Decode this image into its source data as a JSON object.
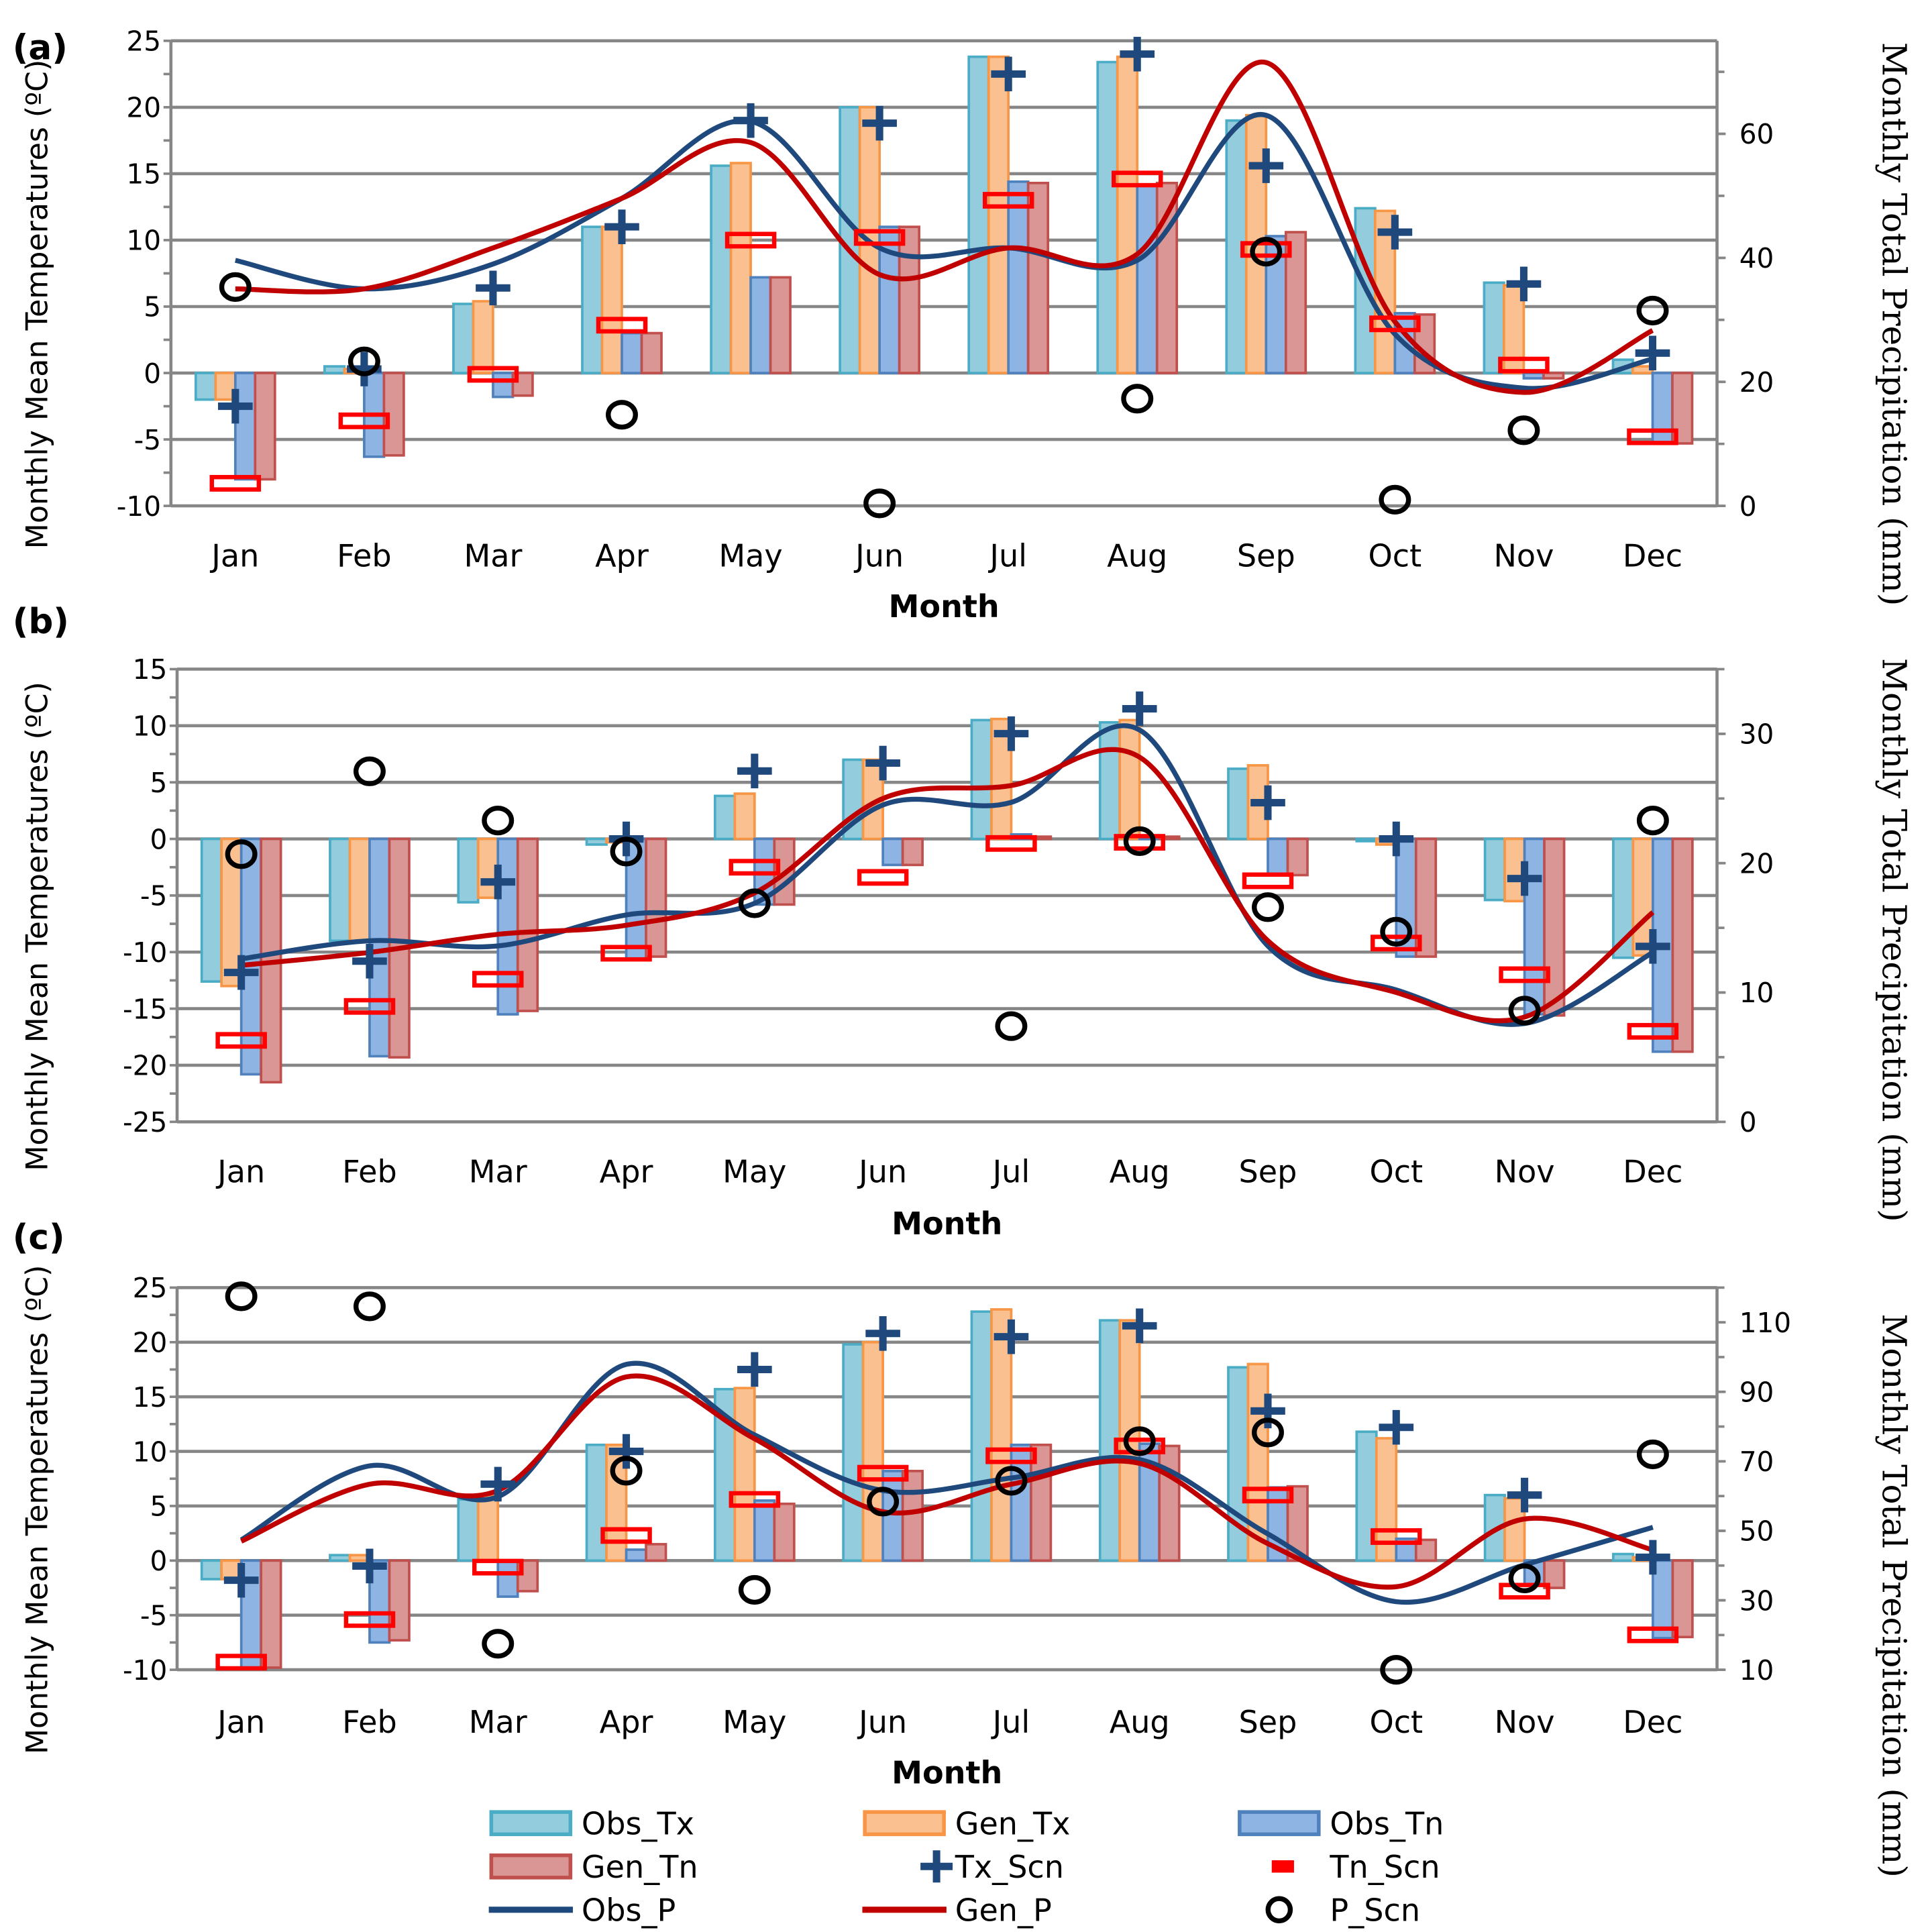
{
  "legend": {
    "items": [
      {
        "label": "Obs_Tx",
        "kind": "bar",
        "fill": "#93CDDD",
        "stroke": "#4BACC6"
      },
      {
        "label": "Gen_Tx",
        "kind": "bar",
        "fill": "#FAC090",
        "stroke": "#F79646"
      },
      {
        "label": "Obs_Tn",
        "kind": "bar",
        "fill": "#8EB4E3",
        "stroke": "#4F81BD"
      },
      {
        "label": "Gen_Tn",
        "kind": "bar",
        "fill": "#D99694",
        "stroke": "#C0504D"
      },
      {
        "label": "Tx_Scn",
        "kind": "plus",
        "fill": "#1F497D"
      },
      {
        "label": "Tn_Scn",
        "kind": "dash",
        "fill": "#FF0000"
      },
      {
        "label": "Obs_P",
        "kind": "line",
        "fill": "#1F497D"
      },
      {
        "label": "Gen_P",
        "kind": "line",
        "fill": "#C00000"
      },
      {
        "label": "P_Scn",
        "kind": "circle",
        "fill": "#000000"
      }
    ]
  },
  "chart_data": [
    {
      "type": "bar",
      "panel_label": "(a)",
      "xlabel": "Month",
      "ylabel": "Monthly Mean Temperatures (ºC)",
      "y2label": "Monthly Total Precipitation (mm)",
      "categories": [
        "Jan",
        "Feb",
        "Mar",
        "Apr",
        "May",
        "Jun",
        "Jul",
        "Aug",
        "Sep",
        "Oct",
        "Nov",
        "Dec"
      ],
      "ylim": [
        -10,
        25
      ],
      "y2lim": [
        0,
        75
      ],
      "left_ticks": [
        "25",
        "20",
        "15",
        "10",
        "5",
        "0",
        "-5",
        "-10"
      ],
      "right_ticks": [
        "60",
        "40",
        "20",
        "0"
      ],
      "grid": true,
      "series": [
        {
          "name": "Obs_Tx",
          "axis": "left",
          "values": [
            -2,
            0.5,
            5.2,
            11,
            15.6,
            20,
            23.8,
            23.4,
            19,
            12.4,
            6.8,
            1
          ]
        },
        {
          "name": "Gen_Tx",
          "axis": "left",
          "values": [
            -2,
            0.3,
            5.4,
            11,
            15.8,
            20,
            23.8,
            23.8,
            19.4,
            12.2,
            6.6,
            0.5
          ]
        },
        {
          "name": "Obs_Tn",
          "axis": "left",
          "values": [
            -8,
            -6.3,
            -1.8,
            3,
            7.2,
            11,
            14.4,
            14.2,
            10.3,
            4.5,
            -0.4,
            -5.3
          ]
        },
        {
          "name": "Gen_Tn",
          "axis": "left",
          "values": [
            -8,
            -6.2,
            -1.7,
            3,
            7.2,
            11,
            14.3,
            14.3,
            10.6,
            4.4,
            -0.4,
            -5.3
          ]
        },
        {
          "name": "Tx_Scn",
          "axis": "left",
          "values": [
            -2.5,
            0.3,
            6.4,
            11,
            19,
            18.8,
            22.5,
            24,
            15.6,
            10.6,
            6.7,
            1.5
          ]
        },
        {
          "name": "Tn_Scn",
          "axis": "left",
          "values": [
            -8.3,
            -3.6,
            -0.1,
            3.6,
            10,
            10.2,
            13,
            14.6,
            9.3,
            3.7,
            0.6,
            -4.8
          ]
        },
        {
          "name": "Obs_P",
          "axis": "right",
          "values": [
            39.6,
            35,
            39,
            49.6,
            62,
            41.6,
            41.6,
            39.6,
            63,
            27.7,
            19,
            23.7
          ]
        },
        {
          "name": "Gen_P",
          "axis": "right",
          "values": [
            35,
            35,
            41.6,
            49.6,
            58.6,
            37.3,
            41.6,
            40.6,
            71.5,
            29.7,
            18.3,
            28.3
          ]
        },
        {
          "name": "P_Scn",
          "axis": "right",
          "values": [
            35.3,
            23.3,
            null,
            14.7,
            null,
            0.4,
            null,
            17.3,
            41,
            1,
            12.2,
            31.5
          ]
        }
      ]
    },
    {
      "type": "bar",
      "panel_label": "(b)",
      "xlabel": "Month",
      "ylabel": "Monthly Mean Temperatures (ºC)",
      "y2label": "Monthly Total Precipitation (mm)",
      "categories": [
        "Jan",
        "Feb",
        "Mar",
        "Apr",
        "May",
        "Jun",
        "Jul",
        "Aug",
        "Sep",
        "Oct",
        "Nov",
        "Dec"
      ],
      "ylim": [
        -25,
        15
      ],
      "y2lim": [
        0,
        35
      ],
      "left_ticks": [
        "15",
        "10",
        "5",
        "0",
        "-5",
        "-10",
        "-15",
        "-20",
        "-25"
      ],
      "right_ticks": [
        "30",
        "20",
        "10",
        "0"
      ],
      "grid": true,
      "series": [
        {
          "name": "Obs_Tx",
          "axis": "left",
          "values": [
            -12.6,
            -9,
            -5.6,
            -0.5,
            3.8,
            7,
            10.5,
            10.3,
            6.2,
            -0.2,
            -5.4,
            -10.5
          ]
        },
        {
          "name": "Gen_Tx",
          "axis": "left",
          "values": [
            -13,
            -9,
            -5.2,
            -0.3,
            4,
            7,
            10.6,
            10.5,
            6.5,
            -0.5,
            -5.5,
            -10.3
          ]
        },
        {
          "name": "Obs_Tn",
          "axis": "left",
          "values": [
            -20.8,
            -19.2,
            -15.5,
            -10.6,
            -5.8,
            -2.3,
            0.4,
            0.2,
            -3.2,
            -10.4,
            -15.5,
            -18.8
          ]
        },
        {
          "name": "Gen_Tn",
          "axis": "left",
          "values": [
            -21.5,
            -19.3,
            -15.2,
            -10.4,
            -5.8,
            -2.3,
            0.2,
            0.2,
            -3.2,
            -10.4,
            -15.6,
            -18.8
          ]
        },
        {
          "name": "Tx_Scn",
          "axis": "left",
          "values": [
            -11.8,
            -10.8,
            -3.8,
            0,
            6,
            6.7,
            9.3,
            11.5,
            3.2,
            0,
            -3.5,
            -9.5
          ]
        },
        {
          "name": "Tn_Scn",
          "axis": "left",
          "values": [
            -17.8,
            -14.8,
            -12.4,
            -10.1,
            -2.5,
            -3.4,
            -0.4,
            -0.3,
            -3.7,
            -9.2,
            -12,
            -17
          ]
        },
        {
          "name": "Obs_P",
          "axis": "right",
          "values": [
            12.6,
            14,
            13.6,
            16,
            16.9,
            24.5,
            24.7,
            30.3,
            13.6,
            10.2,
            7.6,
            13.1
          ]
        },
        {
          "name": "Gen_P",
          "axis": "right",
          "values": [
            12.1,
            13.1,
            14.5,
            15.2,
            17.7,
            25,
            26,
            28.2,
            14,
            10,
            8.1,
            16.2
          ]
        },
        {
          "name": "P_Scn",
          "axis": "right",
          "values": [
            20.7,
            27.1,
            23.3,
            20.9,
            16.9,
            null,
            7.4,
            21.7,
            16.6,
            14.7,
            8.6,
            23.3
          ]
        }
      ]
    },
    {
      "type": "bar",
      "panel_label": "(c)",
      "xlabel": "Month",
      "ylabel": "Monthly Mean Temperatures (ºC)",
      "y2label": "Monthly Total Precipitation (mm)",
      "categories": [
        "Jan",
        "Feb",
        "Mar",
        "Apr",
        "May",
        "Jun",
        "Jul",
        "Aug",
        "Sep",
        "Oct",
        "Nov",
        "Dec"
      ],
      "ylim": [
        -10,
        25
      ],
      "y2lim": [
        10,
        120
      ],
      "left_ticks": [
        "25",
        "20",
        "15",
        "10",
        "5",
        "0",
        "-5",
        "-10"
      ],
      "right_ticks": [
        "110",
        "90",
        "70",
        "50",
        "30",
        "10"
      ],
      "grid": true,
      "series": [
        {
          "name": "Obs_Tx",
          "axis": "left",
          "values": [
            -1.7,
            0.5,
            5.6,
            10.6,
            15.7,
            19.8,
            22.8,
            22,
            17.7,
            11.8,
            6,
            0.6
          ]
        },
        {
          "name": "Gen_Tx",
          "axis": "left",
          "values": [
            -1.7,
            0.5,
            6,
            10.6,
            15.8,
            20,
            23,
            22,
            18,
            11.2,
            5.7,
            0.3
          ]
        },
        {
          "name": "Obs_Tn",
          "axis": "left",
          "values": [
            -9.8,
            -7.5,
            -3.3,
            1,
            5.5,
            8.2,
            10.6,
            10.7,
            6.7,
            2,
            -2.3,
            -7.1
          ]
        },
        {
          "name": "Gen_Tn",
          "axis": "left",
          "values": [
            -9.8,
            -7.3,
            -2.8,
            1.5,
            5.2,
            8.2,
            10.6,
            10.5,
            6.8,
            1.9,
            -2.5,
            -7
          ]
        },
        {
          "name": "Tx_Scn",
          "axis": "left",
          "values": [
            -1.8,
            -0.5,
            7,
            10,
            17.5,
            20.8,
            20.5,
            21.5,
            13.7,
            12.2,
            6,
            0.3
          ]
        },
        {
          "name": "Tn_Scn",
          "axis": "left",
          "values": [
            -9.3,
            -5.4,
            -0.6,
            2.3,
            5.6,
            8,
            9.6,
            10.5,
            6,
            2.2,
            -2.8,
            -6.8
          ]
        },
        {
          "name": "Obs_P",
          "axis": "right",
          "values": [
            47.4,
            68.7,
            59.8,
            97.9,
            77.6,
            61.6,
            65.2,
            70.5,
            49.1,
            29.6,
            40.2,
            51
          ]
        },
        {
          "name": "Gen_P",
          "axis": "right",
          "values": [
            47,
            63.4,
            61.6,
            94.3,
            76.5,
            55.5,
            63.4,
            69.4,
            46.3,
            33.9,
            53.4,
            44.5
          ]
        },
        {
          "name": "P_Scn",
          "axis": "right",
          "values": [
            117.5,
            114.6,
            17.5,
            67.3,
            33,
            58.4,
            64.4,
            75.8,
            78.3,
            10,
            36.3,
            72
          ]
        }
      ]
    }
  ]
}
